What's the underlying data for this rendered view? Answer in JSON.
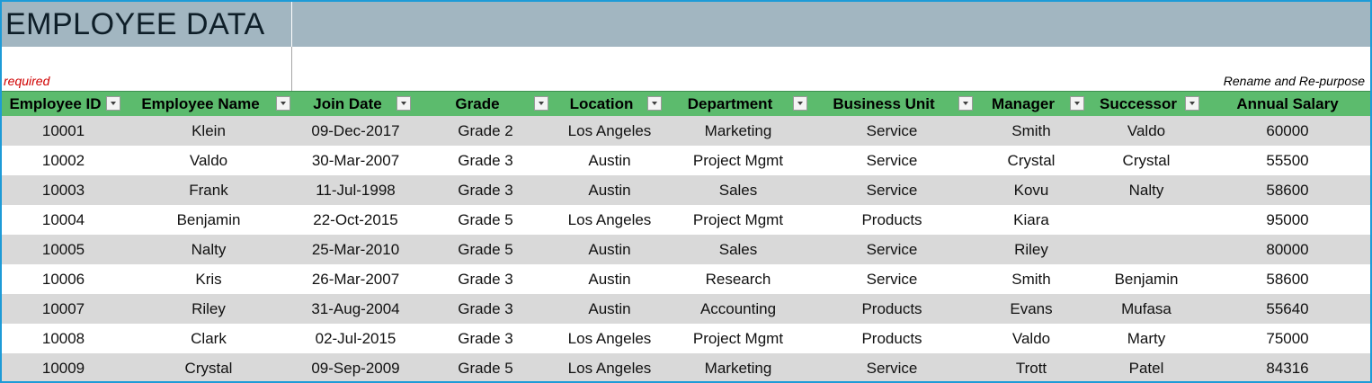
{
  "title": "EMPLOYEE DATA",
  "note_required": "required",
  "note_repurpose": "Rename and Re-purpose",
  "colors": {
    "title_band": "#a2b6c1",
    "header": "#5cbb6d",
    "stripe": "#d9d9d9",
    "required_note": "#d00000",
    "frame": "#1e9bd7"
  },
  "icons": {
    "filter": "dropdown-arrow-icon"
  },
  "columns": [
    {
      "key": "id",
      "label": "Employee ID"
    },
    {
      "key": "name",
      "label": "Employee Name"
    },
    {
      "key": "join",
      "label": "Join Date"
    },
    {
      "key": "grade",
      "label": "Grade"
    },
    {
      "key": "location",
      "label": "Location"
    },
    {
      "key": "dept",
      "label": "Department"
    },
    {
      "key": "unit",
      "label": "Business Unit"
    },
    {
      "key": "manager",
      "label": "Manager"
    },
    {
      "key": "successor",
      "label": "Successor"
    },
    {
      "key": "salary",
      "label": "Annual Salary"
    }
  ],
  "rows": [
    [
      "10001",
      "Klein",
      "09-Dec-2017",
      "Grade 2",
      "Los Angeles",
      "Marketing",
      "Service",
      "Smith",
      "Valdo",
      "60000"
    ],
    [
      "10002",
      "Valdo",
      "30-Mar-2007",
      "Grade 3",
      "Austin",
      "Project Mgmt",
      "Service",
      "Crystal",
      "Crystal",
      "55500"
    ],
    [
      "10003",
      "Frank",
      "11-Jul-1998",
      "Grade 3",
      "Austin",
      "Sales",
      "Service",
      "Kovu",
      "Nalty",
      "58600"
    ],
    [
      "10004",
      "Benjamin",
      "22-Oct-2015",
      "Grade 5",
      "Los Angeles",
      "Project Mgmt",
      "Products",
      "Kiara",
      "",
      "95000"
    ],
    [
      "10005",
      "Nalty",
      "25-Mar-2010",
      "Grade 5",
      "Austin",
      "Sales",
      "Service",
      "Riley",
      "",
      "80000"
    ],
    [
      "10006",
      "Kris",
      "26-Mar-2007",
      "Grade 3",
      "Austin",
      "Research",
      "Service",
      "Smith",
      "Benjamin",
      "58600"
    ],
    [
      "10007",
      "Riley",
      "31-Aug-2004",
      "Grade 3",
      "Austin",
      "Accounting",
      "Products",
      "Evans",
      "Mufasa",
      "55640"
    ],
    [
      "10008",
      "Clark",
      "02-Jul-2015",
      "Grade 3",
      "Los Angeles",
      "Project Mgmt",
      "Products",
      "Valdo",
      "Marty",
      "75000"
    ],
    [
      "10009",
      "Crystal",
      "09-Sep-2009",
      "Grade 5",
      "Los Angeles",
      "Marketing",
      "Service",
      "Trott",
      "Patel",
      "84316"
    ]
  ]
}
